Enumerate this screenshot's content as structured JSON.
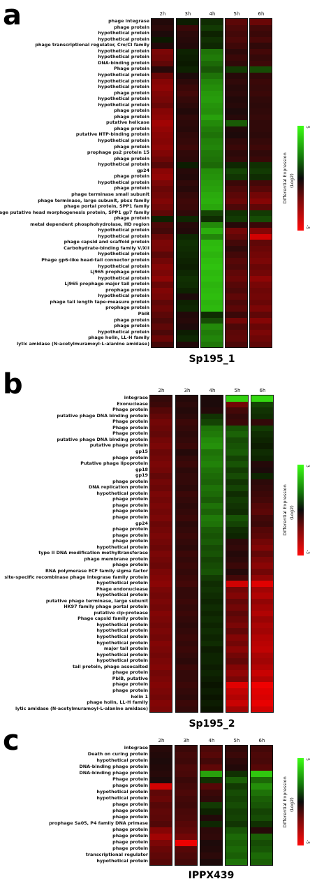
{
  "chart_data": [
    {
      "type": "heatmap",
      "panel": "a",
      "title": "Sp195_1",
      "columns": [
        "2h",
        "3h",
        "4h",
        "5h",
        "6h"
      ],
      "legend": {
        "title": "Differential Expression",
        "unit": "(Log2)",
        "max_label": "5",
        "min_label": "-5",
        "range": [
          -5,
          5
        ]
      },
      "rows": [
        "phage integrase",
        "phage protein",
        "hypothetical protein",
        "hypothetical protein",
        "phage transcriptional regulator, Cro/CI family",
        "hypothetical protein",
        "hypothetical protein",
        "DNA-binding protein",
        "Phage protein",
        "hypothetical protein",
        "hypothetical protein",
        "hypothetical protein",
        "phage protein",
        "hypothetical protein",
        "hypothetical protein",
        "phage protein",
        "phage protein",
        "putative helicase",
        "phage protein",
        "putative NTP-binding protein",
        "hypothetical protein",
        "phage protein",
        "prophage ps2 protein 15",
        "phage protein",
        "hypothetical protein",
        "gp24",
        "phage protein",
        "hypothetical protein",
        "phage protein",
        "phage terminase small subunit",
        "phage terminase, large subunit, pbsx family",
        "phage portal protein, SPP1 family",
        "phage putative head morphogenesis protein, SPP1 gp7 family",
        "phage protein",
        "metal dependent phosphohydrolase, HD region",
        "hypothetical protein",
        "hypothetical protein",
        "phage capsid and scaffold protein",
        "Carbohydrate-binding family V/XII",
        "hypothetical protein",
        "Phage gp6-like head-tail connector protein",
        "hypothetical protein",
        "Lj965 prophage protein",
        "hypothetical protein",
        "Lj965 prophage major tail protein",
        "prophage protein",
        "hypothetical protein",
        "phage tail length tape-measure protein",
        "prophage protein",
        "PblB",
        "phage protein",
        "phage protein",
        "hypothetical protein",
        "phage holin, LL-H family",
        "lytic amidase (N-acetylmuramoyl-L-alanine amidase)"
      ],
      "values": [
        [
          -0.3,
          0.2,
          0.5,
          -1.5,
          -1.8
        ],
        [
          -0.5,
          -0.8,
          0.8,
          -1.2,
          -1.0
        ],
        [
          -0.2,
          -0.5,
          0.3,
          -1.0,
          -0.8
        ],
        [
          0.1,
          -0.4,
          0.6,
          -1.2,
          -1.1
        ],
        [
          -0.3,
          -0.3,
          0.4,
          -0.9,
          -0.6
        ],
        [
          -2.2,
          0.3,
          2.0,
          -0.5,
          -1.0
        ],
        [
          -2.0,
          0.2,
          2.2,
          -0.8,
          -0.7
        ],
        [
          -1.6,
          0.1,
          1.8,
          -0.6,
          -0.9
        ],
        [
          -0.4,
          0.3,
          1.4,
          0.8,
          1.2
        ],
        [
          -1.8,
          -0.2,
          2.0,
          -0.4,
          -0.6
        ],
        [
          -2.4,
          -0.5,
          2.4,
          -0.6,
          -0.8
        ],
        [
          -2.6,
          -0.8,
          2.6,
          -0.4,
          -0.7
        ],
        [
          -2.3,
          -1.0,
          2.8,
          -0.5,
          -0.8
        ],
        [
          -2.1,
          -0.7,
          2.9,
          -0.3,
          -0.6
        ],
        [
          -1.8,
          -0.5,
          2.7,
          -0.4,
          -0.5
        ],
        [
          -2.4,
          -0.3,
          2.6,
          -0.2,
          -0.6
        ],
        [
          -2.6,
          -0.6,
          3.0,
          -0.4,
          -0.7
        ],
        [
          -3.0,
          -0.5,
          2.5,
          1.5,
          -0.6
        ],
        [
          -2.7,
          -0.4,
          2.2,
          -0.3,
          -0.6
        ],
        [
          -2.5,
          -0.6,
          2.0,
          -0.2,
          -0.5
        ],
        [
          -2.4,
          -0.7,
          2.3,
          -0.6,
          -0.7
        ],
        [
          -2.6,
          -0.9,
          2.4,
          -0.8,
          -0.9
        ],
        [
          -2.3,
          -0.6,
          2.1,
          -0.5,
          -0.6
        ],
        [
          -1.9,
          -0.5,
          2.0,
          -0.7,
          -0.8
        ],
        [
          -1.4,
          0.2,
          1.8,
          0.4,
          0.6
        ],
        [
          -2.5,
          -0.4,
          2.6,
          1.0,
          0.8
        ],
        [
          -2.7,
          -0.3,
          2.7,
          0.7,
          0.5
        ],
        [
          -2.2,
          -0.6,
          2.9,
          -0.8,
          -1.0
        ],
        [
          -1.8,
          -0.4,
          3.0,
          -1.2,
          -1.4
        ],
        [
          -2.0,
          -0.7,
          3.2,
          -1.5,
          -2.0
        ],
        [
          -2.3,
          -0.9,
          3.3,
          -1.8,
          -2.4
        ],
        [
          -2.0,
          -0.8,
          3.1,
          -1.2,
          -1.6
        ],
        [
          -1.6,
          -0.6,
          1.0,
          0.6,
          0.8
        ],
        [
          0.3,
          0.4,
          0.5,
          0.8,
          1.2
        ],
        [
          -1.2,
          -0.4,
          2.5,
          -0.4,
          -0.8
        ],
        [
          -1.0,
          -0.3,
          3.3,
          -2.0,
          -2.4
        ],
        [
          -1.8,
          0.4,
          2.4,
          -1.6,
          -4.0
        ],
        [
          -2.2,
          0.6,
          3.5,
          -1.0,
          -1.6
        ],
        [
          -2.1,
          0.5,
          3.6,
          -0.6,
          -1.8
        ],
        [
          -1.5,
          0.4,
          3.4,
          -1.0,
          -2.0
        ],
        [
          -2.0,
          0.3,
          3.6,
          -1.4,
          -2.2
        ],
        [
          -2.4,
          0.2,
          3.7,
          -1.2,
          -1.8
        ],
        [
          -2.2,
          0.4,
          3.5,
          -1.6,
          -2.0
        ],
        [
          -2.6,
          0.6,
          3.6,
          -1.8,
          -2.6
        ],
        [
          -1.8,
          0.5,
          3.4,
          -1.4,
          -2.1
        ],
        [
          -2.3,
          0.3,
          3.5,
          -1.2,
          -1.9
        ],
        [
          -2.1,
          -0.2,
          3.6,
          -1.6,
          -2.0
        ],
        [
          -1.6,
          0.3,
          3.4,
          -1.2,
          -1.8
        ],
        [
          -1.9,
          0.4,
          3.5,
          -1.5,
          -2.2
        ],
        [
          -1.5,
          -0.3,
          0.5,
          -0.8,
          -1.6
        ],
        [
          -1.2,
          -0.4,
          1.2,
          -2.0,
          -2.4
        ],
        [
          -1.6,
          -0.2,
          2.5,
          -1.2,
          -1.8
        ],
        [
          -1.2,
          0.2,
          2.2,
          -1.5,
          -2.2
        ],
        [
          -1.8,
          0.4,
          2.4,
          -1.6,
          -1.9
        ],
        [
          -1.0,
          -0.3,
          2.1,
          -1.2,
          -1.6
        ]
      ]
    },
    {
      "type": "heatmap",
      "panel": "b",
      "title": "Sp195_2",
      "columns": [
        "2h",
        "3h",
        "4h",
        "5h",
        "6h"
      ],
      "legend": {
        "title": "Differential Expression",
        "unit": "(Log2)",
        "max_label": "3",
        "min_label": "-3",
        "range": [
          -3,
          3
        ]
      },
      "rows": [
        "integrase",
        "Exonuclease",
        "Phage protein",
        "putative phage DNA binding protein",
        "Phage protein",
        "Phage protein",
        "Phage protein",
        "putative phage DNA binding protein",
        "putative phage protein",
        "gp15",
        "phage protein",
        "Putative phage lipoprotein",
        "gp18",
        "gp19",
        "phage protein",
        "DNA replication protein",
        "hypothetical protein",
        "phage protein",
        "phage protein",
        "phage protein",
        "phage protein",
        "gp24",
        "phage protein",
        "phage protein",
        "phage protein",
        "hypothetical protein",
        "type II DNA modification methyltransferase",
        "phage membrane protein",
        "phage protein",
        "RNA polymerase ECF family sigma factor",
        "site-specific recombinase phage integrase family protein",
        "hypothetical protein",
        "Phage endonuclease",
        "hypothetical protein",
        "putative phage terminase, large subunit",
        "HK97 family phage portal protein",
        "putative clp-protease",
        "Phage capsid family protein",
        "hypothetical protein",
        "hypothetical protein",
        "hypothetical protein",
        "hypothetical protein",
        "major tail protein",
        "hypothetical protein",
        "hypothetical protein",
        "tail protein, phage assocaited",
        "phage protein",
        "PblB, putative",
        "phage protein",
        "phage protein",
        "holin 1",
        "phage holin, LL-H family",
        "lytic amidase (N-acetylmuramoyl-L-alanine amidase)"
      ],
      "values": [
        [
          -0.4,
          -0.2,
          -0.1,
          2.4,
          2.5
        ],
        [
          -0.5,
          -0.3,
          -0.1,
          -1.2,
          0.6
        ],
        [
          -0.8,
          -0.2,
          -0.2,
          -0.6,
          0.4
        ],
        [
          -1.0,
          -0.3,
          0.4,
          -0.4,
          0.3
        ],
        [
          -1.2,
          -0.5,
          0.6,
          -0.5,
          -0.4
        ],
        [
          -1.1,
          -0.4,
          1.2,
          0.8,
          0.5
        ],
        [
          -1.0,
          -0.3,
          1.3,
          1.0,
          0.3
        ],
        [
          -1.2,
          -0.4,
          1.5,
          0.7,
          0.2
        ],
        [
          -1.3,
          -0.5,
          1.6,
          0.8,
          0.1
        ],
        [
          -1.1,
          -0.2,
          1.2,
          0.9,
          0.3
        ],
        [
          -1.2,
          -0.4,
          1.3,
          0.6,
          0.2
        ],
        [
          -1.3,
          -0.5,
          1.4,
          0.8,
          -0.2
        ],
        [
          -1.2,
          -0.3,
          1.2,
          0.5,
          -0.1
        ],
        [
          -1.0,
          -0.4,
          1.1,
          0.7,
          0.2
        ],
        [
          -1.2,
          -0.4,
          1.0,
          0.4,
          -0.3
        ],
        [
          -1.1,
          -0.3,
          1.2,
          0.6,
          -0.4
        ],
        [
          -1.3,
          -0.5,
          1.1,
          0.3,
          -0.5
        ],
        [
          -1.2,
          -0.4,
          0.9,
          0.5,
          -0.6
        ],
        [
          -1.3,
          -0.3,
          1.2,
          0.4,
          -0.8
        ],
        [
          -1.2,
          -0.4,
          1.0,
          0.3,
          -0.9
        ],
        [
          -1.3,
          -0.5,
          1.3,
          0.8,
          -0.6
        ],
        [
          -1.1,
          -0.3,
          1.2,
          0.6,
          -0.5
        ],
        [
          -1.2,
          -0.4,
          0.9,
          0.3,
          -0.8
        ],
        [
          -1.3,
          -0.5,
          0.8,
          0.2,
          -0.9
        ],
        [
          -1.2,
          -0.4,
          0.9,
          -0.3,
          -1.2
        ],
        [
          -1.1,
          -0.3,
          0.7,
          -0.4,
          -1.4
        ],
        [
          -1.3,
          -0.5,
          0.8,
          -0.2,
          -1.0
        ],
        [
          -1.2,
          -0.4,
          0.6,
          -0.3,
          -1.3
        ],
        [
          -1.1,
          -0.5,
          0.7,
          -0.5,
          -1.5
        ],
        [
          -1.3,
          -0.4,
          0.8,
          -0.2,
          -1.2
        ],
        [
          -1.4,
          -0.5,
          0.5,
          -0.6,
          -1.6
        ],
        [
          -1.5,
          -0.6,
          0.3,
          -2.4,
          -2.6
        ],
        [
          -1.3,
          -0.4,
          0.4,
          -1.2,
          -1.8
        ],
        [
          -1.2,
          -0.4,
          0.3,
          -1.4,
          -2.0
        ],
        [
          -1.3,
          -0.5,
          0.2,
          -1.0,
          -1.6
        ],
        [
          -1.2,
          -0.4,
          0.3,
          -1.2,
          -1.8
        ],
        [
          -1.4,
          -0.5,
          0.2,
          -0.9,
          -2.0
        ],
        [
          -1.3,
          -0.4,
          0.3,
          -1.1,
          -1.7
        ],
        [
          -1.2,
          -0.3,
          0.2,
          -1.3,
          -1.9
        ],
        [
          -1.3,
          -0.4,
          0.3,
          -1.0,
          -1.8
        ],
        [
          -1.2,
          -0.5,
          0.2,
          -1.4,
          -2.0
        ],
        [
          -1.4,
          -0.4,
          0.3,
          -1.2,
          -2.1
        ],
        [
          -1.3,
          -0.5,
          0.1,
          -1.5,
          -2.2
        ],
        [
          -1.2,
          -0.4,
          0.2,
          -1.2,
          -1.9
        ],
        [
          -1.3,
          -0.3,
          0.2,
          -1.0,
          -1.8
        ],
        [
          -1.4,
          -0.5,
          0.1,
          -1.4,
          -2.0
        ],
        [
          -1.2,
          -0.4,
          0.2,
          -1.6,
          -2.3
        ],
        [
          -1.3,
          -0.4,
          0.1,
          -1.3,
          -2.0
        ],
        [
          -1.4,
          -0.5,
          0.0,
          -2.6,
          -2.8
        ],
        [
          -1.3,
          -0.4,
          0.1,
          -2.2,
          -2.6
        ],
        [
          -1.2,
          -0.3,
          0.0,
          -2.0,
          -2.5
        ],
        [
          -1.4,
          -0.5,
          0.1,
          -2.3,
          -2.7
        ],
        [
          -1.3,
          -0.4,
          0.0,
          -1.8,
          -2.4
        ]
      ]
    },
    {
      "type": "heatmap",
      "panel": "c",
      "title": "IPPX439",
      "columns": [
        "2h",
        "3h",
        "4h",
        "5h",
        "6h"
      ],
      "legend": {
        "title": "Differential Expression",
        "unit": "(Log2)",
        "max_label": "5",
        "min_label": "-5",
        "range": [
          -5,
          5
        ]
      },
      "rows": [
        "integrase",
        "Death on curing protein",
        "hypothetical protein",
        "DNA-binding phage protein",
        "DNA-binding phage protein",
        "Phage protein",
        "phage protein",
        "hypothetical protein",
        "hypothetical protein",
        "phage protein",
        "phage protein",
        "phage protein",
        "prophage Sa05, P4 family DNA primase",
        "phage protein",
        "phage protein",
        "phage protein",
        "phage protein",
        "transcriptional regulator",
        "hypothetical protein"
      ],
      "values": [
        [
          -0.4,
          -0.8,
          -1.2,
          -0.6,
          -1.0
        ],
        [
          -0.3,
          -1.0,
          -1.4,
          -0.8,
          -1.2
        ],
        [
          -0.2,
          -0.9,
          -1.0,
          -0.5,
          -1.1
        ],
        [
          -0.3,
          -1.2,
          -1.6,
          -0.3,
          -1.4
        ],
        [
          -0.4,
          -1.1,
          3.0,
          0.6,
          3.8
        ],
        [
          -0.2,
          -0.8,
          0.6,
          1.6,
          1.8
        ],
        [
          -4.0,
          -1.0,
          -1.4,
          0.8,
          2.6
        ],
        [
          -1.6,
          -1.2,
          -0.8,
          1.2,
          2.0
        ],
        [
          -1.8,
          -1.0,
          -0.6,
          1.0,
          1.6
        ],
        [
          -1.4,
          -0.9,
          0.8,
          1.2,
          1.4
        ],
        [
          -1.6,
          -1.1,
          0.3,
          0.9,
          1.0
        ],
        [
          -1.5,
          -1.2,
          -0.3,
          1.0,
          1.2
        ],
        [
          -1.3,
          -1.4,
          0.4,
          0.7,
          0.6
        ],
        [
          -2.4,
          -1.6,
          -0.5,
          1.4,
          -0.4
        ],
        [
          -3.0,
          -2.0,
          -0.6,
          1.8,
          1.6
        ],
        [
          -2.2,
          -4.6,
          -0.2,
          1.6,
          1.2
        ],
        [
          -1.8,
          -1.4,
          -0.3,
          1.8,
          1.4
        ],
        [
          -1.6,
          -1.2,
          -0.5,
          1.6,
          1.8
        ],
        [
          -1.4,
          -1.0,
          -0.2,
          2.0,
          1.6
        ]
      ]
    }
  ]
}
